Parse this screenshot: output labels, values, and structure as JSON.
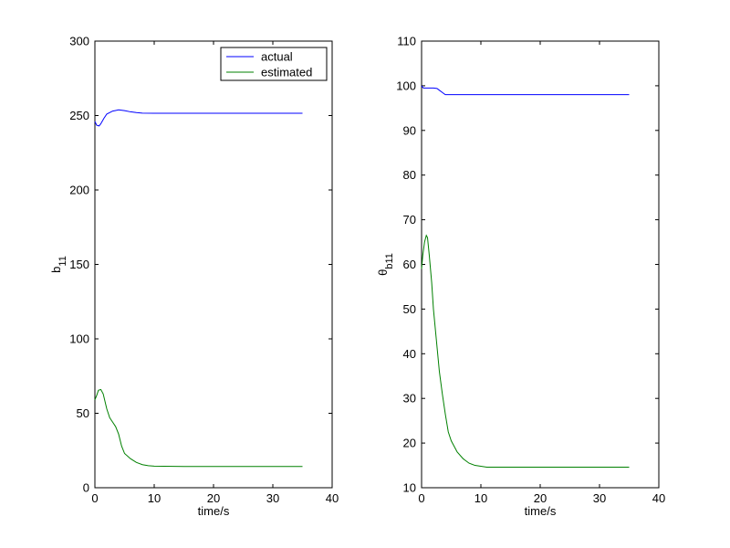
{
  "chart_data": [
    {
      "type": "line",
      "xlabel": "time/s",
      "ylabel": {
        "base": "b",
        "sub": "11"
      },
      "xlim": [
        0,
        40
      ],
      "ylim": [
        0,
        300
      ],
      "xticks": [
        0,
        10,
        20,
        30,
        40
      ],
      "yticks": [
        0,
        50,
        100,
        150,
        200,
        250,
        300
      ],
      "xtick_labels": [
        "0",
        "10",
        "20",
        "30",
        "40"
      ],
      "ytick_labels": [
        "0",
        "50",
        "100",
        "150",
        "200",
        "250",
        "300"
      ],
      "grid": false,
      "legend": {
        "placement": "top-right",
        "entries": [
          "actual",
          "estimated"
        ]
      },
      "series": [
        {
          "name": "actual",
          "color": "#0000ff",
          "points": [
            [
              0,
              246
            ],
            [
              0.3,
              243.5
            ],
            [
              0.7,
              243
            ],
            [
              1,
              244.5
            ],
            [
              1.5,
              248
            ],
            [
              2,
              251
            ],
            [
              3,
              253
            ],
            [
              4,
              253.8
            ],
            [
              5,
              253.3
            ],
            [
              6,
              252.5
            ],
            [
              7,
              252
            ],
            [
              8,
              251.6
            ],
            [
              10,
              251.5
            ],
            [
              20,
              251.5
            ],
            [
              35,
              251.5
            ]
          ]
        },
        {
          "name": "estimated",
          "color": "#008000",
          "points": [
            [
              0,
              59
            ],
            [
              0.3,
              62
            ],
            [
              0.6,
              65.5
            ],
            [
              1,
              66
            ],
            [
              1.4,
              63
            ],
            [
              2,
              53
            ],
            [
              2.5,
              47
            ],
            [
              3,
              44
            ],
            [
              3.5,
              41
            ],
            [
              4,
              36
            ],
            [
              4.5,
              28
            ],
            [
              5,
              23
            ],
            [
              6,
              19.5
            ],
            [
              7,
              17
            ],
            [
              8,
              15.5
            ],
            [
              9,
              14.8
            ],
            [
              10,
              14.5
            ],
            [
              15,
              14.3
            ],
            [
              20,
              14.3
            ],
            [
              35,
              14.3
            ]
          ]
        }
      ]
    },
    {
      "type": "line",
      "xlabel": "time/s",
      "ylabel": {
        "base": "θ",
        "sub": "b11"
      },
      "xlim": [
        0,
        40
      ],
      "ylim": [
        10,
        110
      ],
      "xticks": [
        0,
        10,
        20,
        30,
        40
      ],
      "yticks": [
        10,
        20,
        30,
        40,
        50,
        60,
        70,
        80,
        90,
        100,
        110
      ],
      "xtick_labels": [
        "0",
        "10",
        "20",
        "30",
        "40"
      ],
      "ytick_labels": [
        "10",
        "20",
        "30",
        "40",
        "50",
        "60",
        "70",
        "80",
        "90",
        "100",
        "110"
      ],
      "grid": false,
      "series": [
        {
          "color": "#0000ff",
          "points": [
            [
              0,
              100
            ],
            [
              0.3,
              99.5
            ],
            [
              1,
              99.5
            ],
            [
              2,
              99.5
            ],
            [
              2.6,
              99.4
            ],
            [
              3,
              99
            ],
            [
              3.5,
              98.5
            ],
            [
              4,
              98
            ],
            [
              5,
              98
            ],
            [
              10,
              98
            ],
            [
              20,
              98
            ],
            [
              35,
              98
            ]
          ]
        },
        {
          "color": "#008000",
          "points": [
            [
              0,
              59
            ],
            [
              0.2,
              62
            ],
            [
              0.5,
              65
            ],
            [
              0.8,
              66.5
            ],
            [
              1,
              66
            ],
            [
              1.3,
              62
            ],
            [
              1.7,
              56
            ],
            [
              2,
              50
            ],
            [
              2.5,
              43
            ],
            [
              3,
              36
            ],
            [
              3.5,
              31
            ],
            [
              4,
              26.5
            ],
            [
              4.5,
              22.5
            ],
            [
              5,
              20.5
            ],
            [
              6,
              18
            ],
            [
              7,
              16.5
            ],
            [
              8,
              15.5
            ],
            [
              9,
              15
            ],
            [
              10,
              14.8
            ],
            [
              11,
              14.6
            ],
            [
              20,
              14.6
            ],
            [
              35,
              14.6
            ]
          ]
        }
      ]
    }
  ]
}
